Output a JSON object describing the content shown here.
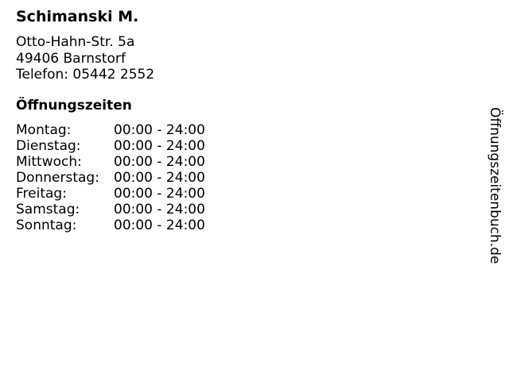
{
  "business": {
    "name": "Schimanski M.",
    "street": "Otto-Hahn-Str. 5a",
    "city": "49406 Barnstorf",
    "phone": "Telefon: 05442 2552"
  },
  "hours": {
    "heading": "Öffnungszeiten",
    "rows": [
      {
        "day": "Montag:",
        "time": "00:00 - 24:00"
      },
      {
        "day": "Dienstag:",
        "time": "00:00 - 24:00"
      },
      {
        "day": "Mittwoch:",
        "time": "00:00 - 24:00"
      },
      {
        "day": "Donnerstag:",
        "time": "00:00 - 24:00"
      },
      {
        "day": "Freitag:",
        "time": "00:00 - 24:00"
      },
      {
        "day": "Samstag:",
        "time": "00:00 - 24:00"
      },
      {
        "day": "Sonntag:",
        "time": "00:00 - 24:00"
      }
    ]
  },
  "watermark": "Öffnungszeitenbuch.de"
}
